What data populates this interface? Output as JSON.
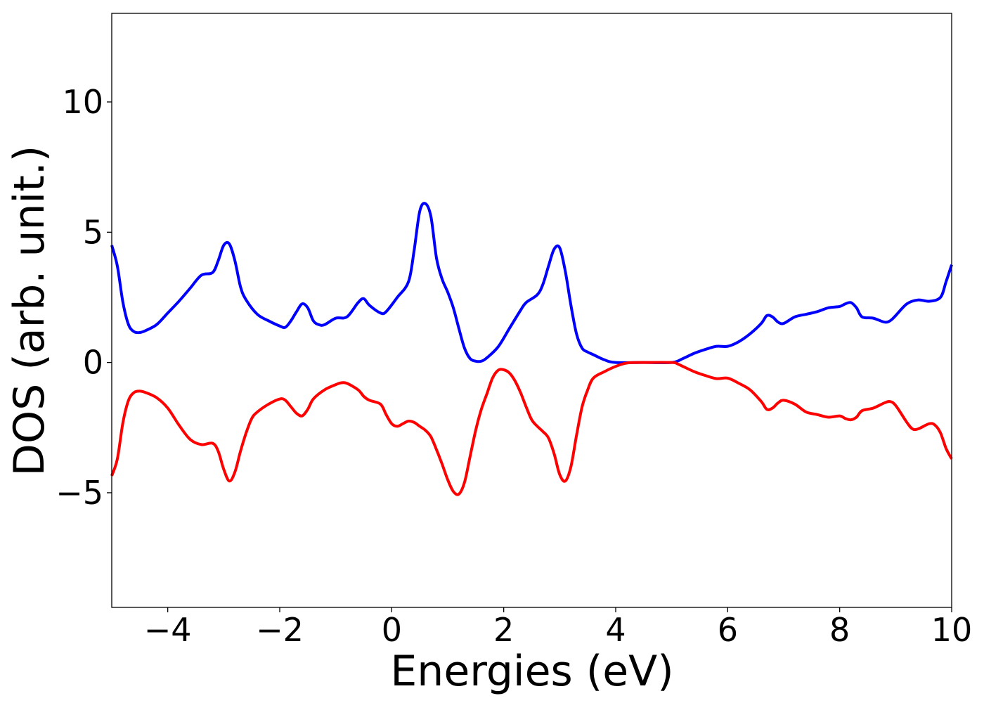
{
  "chart_data": {
    "type": "line",
    "title": "",
    "xlabel": "Energies (eV)",
    "ylabel": "DOS (arb. unit.)",
    "xlim": [
      -5,
      10
    ],
    "ylim": [
      -9.4,
      13.4
    ],
    "x_ticks": [
      {
        "value": -4,
        "label": "−4"
      },
      {
        "value": -2,
        "label": "−2"
      },
      {
        "value": 0,
        "label": "0"
      },
      {
        "value": 2,
        "label": "2"
      },
      {
        "value": 4,
        "label": "4"
      },
      {
        "value": 6,
        "label": "6"
      },
      {
        "value": 8,
        "label": "8"
      },
      {
        "value": 10,
        "label": "10"
      }
    ],
    "y_ticks": [
      {
        "value": -5,
        "label": "−5"
      },
      {
        "value": 0,
        "label": "0"
      },
      {
        "value": 5,
        "label": "5"
      },
      {
        "value": 10,
        "label": "10"
      }
    ],
    "grid": false,
    "legend": "none",
    "series": [
      {
        "color": "#0000ff",
        "points": [
          [
            -5.0,
            4.5
          ],
          [
            -4.9,
            3.7
          ],
          [
            -4.8,
            2.3
          ],
          [
            -4.7,
            1.45
          ],
          [
            -4.6,
            1.18
          ],
          [
            -4.5,
            1.15
          ],
          [
            -4.4,
            1.22
          ],
          [
            -4.2,
            1.45
          ],
          [
            -4.0,
            1.9
          ],
          [
            -3.8,
            2.35
          ],
          [
            -3.6,
            2.85
          ],
          [
            -3.4,
            3.35
          ],
          [
            -3.2,
            3.45
          ],
          [
            -3.1,
            3.9
          ],
          [
            -3.0,
            4.5
          ],
          [
            -2.9,
            4.55
          ],
          [
            -2.8,
            3.9
          ],
          [
            -2.7,
            2.9
          ],
          [
            -2.6,
            2.4
          ],
          [
            -2.4,
            1.85
          ],
          [
            -2.2,
            1.6
          ],
          [
            -2.0,
            1.4
          ],
          [
            -1.9,
            1.35
          ],
          [
            -1.8,
            1.6
          ],
          [
            -1.7,
            1.95
          ],
          [
            -1.6,
            2.25
          ],
          [
            -1.5,
            2.1
          ],
          [
            -1.4,
            1.6
          ],
          [
            -1.3,
            1.45
          ],
          [
            -1.2,
            1.45
          ],
          [
            -1.0,
            1.7
          ],
          [
            -0.8,
            1.75
          ],
          [
            -0.6,
            2.3
          ],
          [
            -0.5,
            2.45
          ],
          [
            -0.4,
            2.2
          ],
          [
            -0.2,
            1.9
          ],
          [
            -0.1,
            1.95
          ],
          [
            0.1,
            2.5
          ],
          [
            0.3,
            3.1
          ],
          [
            0.4,
            4.3
          ],
          [
            0.5,
            5.8
          ],
          [
            0.6,
            6.1
          ],
          [
            0.7,
            5.6
          ],
          [
            0.8,
            4.0
          ],
          [
            0.9,
            3.2
          ],
          [
            1.0,
            2.7
          ],
          [
            1.1,
            2.1
          ],
          [
            1.2,
            1.3
          ],
          [
            1.3,
            0.55
          ],
          [
            1.4,
            0.15
          ],
          [
            1.5,
            0.05
          ],
          [
            1.6,
            0.05
          ],
          [
            1.7,
            0.18
          ],
          [
            1.9,
            0.6
          ],
          [
            2.1,
            1.3
          ],
          [
            2.3,
            2.0
          ],
          [
            2.4,
            2.3
          ],
          [
            2.6,
            2.6
          ],
          [
            2.7,
            3.0
          ],
          [
            2.8,
            3.7
          ],
          [
            2.9,
            4.35
          ],
          [
            3.0,
            4.4
          ],
          [
            3.1,
            3.5
          ],
          [
            3.2,
            2.2
          ],
          [
            3.3,
            1.1
          ],
          [
            3.4,
            0.55
          ],
          [
            3.5,
            0.4
          ],
          [
            3.6,
            0.3
          ],
          [
            3.8,
            0.1
          ],
          [
            4.0,
            0.0
          ],
          [
            4.5,
            0.0
          ],
          [
            5.0,
            0.0
          ],
          [
            5.2,
            0.15
          ],
          [
            5.4,
            0.35
          ],
          [
            5.6,
            0.5
          ],
          [
            5.8,
            0.62
          ],
          [
            6.0,
            0.62
          ],
          [
            6.2,
            0.8
          ],
          [
            6.4,
            1.1
          ],
          [
            6.6,
            1.5
          ],
          [
            6.7,
            1.8
          ],
          [
            6.8,
            1.75
          ],
          [
            6.9,
            1.55
          ],
          [
            7.0,
            1.5
          ],
          [
            7.2,
            1.75
          ],
          [
            7.4,
            1.85
          ],
          [
            7.6,
            1.95
          ],
          [
            7.8,
            2.1
          ],
          [
            8.0,
            2.15
          ],
          [
            8.1,
            2.25
          ],
          [
            8.2,
            2.3
          ],
          [
            8.3,
            2.1
          ],
          [
            8.4,
            1.75
          ],
          [
            8.6,
            1.7
          ],
          [
            8.8,
            1.55
          ],
          [
            8.9,
            1.6
          ],
          [
            9.0,
            1.8
          ],
          [
            9.2,
            2.25
          ],
          [
            9.4,
            2.4
          ],
          [
            9.6,
            2.35
          ],
          [
            9.8,
            2.5
          ],
          [
            9.9,
            3.1
          ],
          [
            10.0,
            3.75
          ]
        ]
      },
      {
        "color": "#ff0000",
        "points": [
          [
            -5.0,
            -4.35
          ],
          [
            -4.9,
            -3.7
          ],
          [
            -4.8,
            -2.3
          ],
          [
            -4.7,
            -1.45
          ],
          [
            -4.6,
            -1.15
          ],
          [
            -4.5,
            -1.1
          ],
          [
            -4.4,
            -1.15
          ],
          [
            -4.2,
            -1.35
          ],
          [
            -4.0,
            -1.75
          ],
          [
            -3.8,
            -2.4
          ],
          [
            -3.6,
            -2.95
          ],
          [
            -3.4,
            -3.15
          ],
          [
            -3.2,
            -3.1
          ],
          [
            -3.1,
            -3.4
          ],
          [
            -3.0,
            -4.1
          ],
          [
            -2.9,
            -4.55
          ],
          [
            -2.8,
            -4.2
          ],
          [
            -2.7,
            -3.4
          ],
          [
            -2.6,
            -2.7
          ],
          [
            -2.5,
            -2.15
          ],
          [
            -2.4,
            -1.9
          ],
          [
            -2.2,
            -1.6
          ],
          [
            -2.0,
            -1.4
          ],
          [
            -1.9,
            -1.45
          ],
          [
            -1.8,
            -1.7
          ],
          [
            -1.7,
            -1.95
          ],
          [
            -1.6,
            -2.05
          ],
          [
            -1.5,
            -1.8
          ],
          [
            -1.4,
            -1.4
          ],
          [
            -1.2,
            -1.05
          ],
          [
            -1.0,
            -0.85
          ],
          [
            -0.9,
            -0.78
          ],
          [
            -0.8,
            -0.8
          ],
          [
            -0.6,
            -1.05
          ],
          [
            -0.5,
            -1.3
          ],
          [
            -0.4,
            -1.45
          ],
          [
            -0.2,
            -1.6
          ],
          [
            -0.1,
            -2.0
          ],
          [
            0.0,
            -2.35
          ],
          [
            0.1,
            -2.45
          ],
          [
            0.2,
            -2.35
          ],
          [
            0.3,
            -2.25
          ],
          [
            0.4,
            -2.3
          ],
          [
            0.5,
            -2.45
          ],
          [
            0.6,
            -2.6
          ],
          [
            0.7,
            -2.85
          ],
          [
            0.8,
            -3.35
          ],
          [
            0.9,
            -3.9
          ],
          [
            1.0,
            -4.5
          ],
          [
            1.1,
            -4.95
          ],
          [
            1.2,
            -5.05
          ],
          [
            1.3,
            -4.6
          ],
          [
            1.4,
            -3.6
          ],
          [
            1.5,
            -2.6
          ],
          [
            1.6,
            -1.8
          ],
          [
            1.7,
            -1.2
          ],
          [
            1.8,
            -0.6
          ],
          [
            1.9,
            -0.3
          ],
          [
            2.0,
            -0.28
          ],
          [
            2.1,
            -0.4
          ],
          [
            2.2,
            -0.7
          ],
          [
            2.3,
            -1.15
          ],
          [
            2.4,
            -1.7
          ],
          [
            2.5,
            -2.2
          ],
          [
            2.6,
            -2.45
          ],
          [
            2.7,
            -2.65
          ],
          [
            2.8,
            -2.9
          ],
          [
            2.9,
            -3.5
          ],
          [
            3.0,
            -4.3
          ],
          [
            3.1,
            -4.55
          ],
          [
            3.2,
            -4.0
          ],
          [
            3.3,
            -2.8
          ],
          [
            3.4,
            -1.7
          ],
          [
            3.5,
            -1.05
          ],
          [
            3.6,
            -0.6
          ],
          [
            3.8,
            -0.35
          ],
          [
            4.0,
            -0.15
          ],
          [
            4.2,
            -0.02
          ],
          [
            4.5,
            0.0
          ],
          [
            5.0,
            0.0
          ],
          [
            5.1,
            -0.05
          ],
          [
            5.2,
            -0.15
          ],
          [
            5.4,
            -0.35
          ],
          [
            5.6,
            -0.5
          ],
          [
            5.8,
            -0.62
          ],
          [
            6.0,
            -0.6
          ],
          [
            6.2,
            -0.8
          ],
          [
            6.4,
            -1.05
          ],
          [
            6.6,
            -1.5
          ],
          [
            6.7,
            -1.8
          ],
          [
            6.8,
            -1.75
          ],
          [
            6.9,
            -1.55
          ],
          [
            7.0,
            -1.45
          ],
          [
            7.2,
            -1.6
          ],
          [
            7.4,
            -1.9
          ],
          [
            7.6,
            -2.0
          ],
          [
            7.8,
            -2.1
          ],
          [
            8.0,
            -2.05
          ],
          [
            8.1,
            -2.15
          ],
          [
            8.2,
            -2.2
          ],
          [
            8.3,
            -2.1
          ],
          [
            8.4,
            -1.85
          ],
          [
            8.6,
            -1.75
          ],
          [
            8.8,
            -1.55
          ],
          [
            8.9,
            -1.5
          ],
          [
            9.0,
            -1.65
          ],
          [
            9.2,
            -2.3
          ],
          [
            9.3,
            -2.55
          ],
          [
            9.4,
            -2.55
          ],
          [
            9.6,
            -2.35
          ],
          [
            9.7,
            -2.4
          ],
          [
            9.8,
            -2.7
          ],
          [
            9.9,
            -3.3
          ],
          [
            10.0,
            -3.7
          ]
        ]
      }
    ]
  }
}
